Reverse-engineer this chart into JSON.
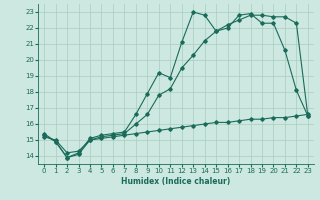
{
  "xlabel": "Humidex (Indice chaleur)",
  "background_color": "#cce8e0",
  "grid_color": "#aaccbf",
  "line_color": "#1a6b5a",
  "xlim": [
    -0.5,
    23.5
  ],
  "ylim": [
    13.5,
    23.5
  ],
  "xticks": [
    0,
    1,
    2,
    3,
    4,
    5,
    6,
    7,
    8,
    9,
    10,
    11,
    12,
    13,
    14,
    15,
    16,
    17,
    18,
    19,
    20,
    21,
    22,
    23
  ],
  "yticks": [
    14,
    15,
    16,
    17,
    18,
    19,
    20,
    21,
    22,
    23
  ],
  "line1_x": [
    0,
    1,
    2,
    3,
    4,
    5,
    6,
    7,
    8,
    9,
    10,
    11,
    12,
    13,
    14,
    15,
    16,
    17,
    18,
    19,
    20,
    21,
    22,
    23
  ],
  "line1_y": [
    15.4,
    14.9,
    13.9,
    14.2,
    15.1,
    15.3,
    15.4,
    15.5,
    16.6,
    17.9,
    19.2,
    18.9,
    21.1,
    23.0,
    22.8,
    21.8,
    22.0,
    22.8,
    22.9,
    22.3,
    22.3,
    20.6,
    18.1,
    16.5
  ],
  "line2_x": [
    0,
    1,
    2,
    3,
    4,
    5,
    6,
    7,
    8,
    9,
    10,
    11,
    12,
    13,
    14,
    15,
    16,
    17,
    18,
    19,
    20,
    21,
    22,
    23
  ],
  "line2_y": [
    15.3,
    14.9,
    13.9,
    14.1,
    15.0,
    15.2,
    15.3,
    15.4,
    16.0,
    16.6,
    17.8,
    18.2,
    19.5,
    20.3,
    21.2,
    21.8,
    22.2,
    22.5,
    22.8,
    22.8,
    22.7,
    22.7,
    22.3,
    16.5
  ],
  "line3_x": [
    0,
    1,
    2,
    3,
    4,
    5,
    6,
    7,
    8,
    9,
    10,
    11,
    12,
    13,
    14,
    15,
    16,
    17,
    18,
    19,
    20,
    21,
    22,
    23
  ],
  "line3_y": [
    15.2,
    15.0,
    14.2,
    14.3,
    15.0,
    15.1,
    15.2,
    15.3,
    15.4,
    15.5,
    15.6,
    15.7,
    15.8,
    15.9,
    16.0,
    16.1,
    16.1,
    16.2,
    16.3,
    16.3,
    16.4,
    16.4,
    16.5,
    16.6
  ]
}
